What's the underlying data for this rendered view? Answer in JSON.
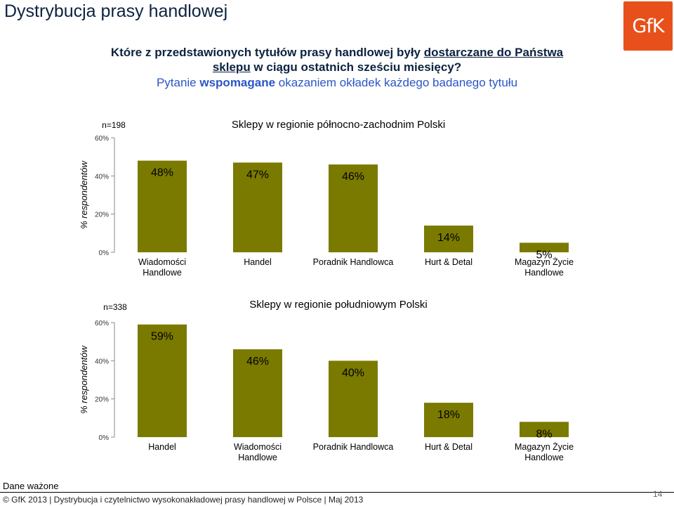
{
  "header": {
    "title": "Dystrybucja prasy handlowej",
    "logo_text": "GfK"
  },
  "question": {
    "part1": "Które z przedstawionych tytułów prasy handlowej były ",
    "part2_underlined": "dostarczane do Państwa",
    "part3_underlined": "sklepu",
    "part4": " w ciągu ostatnich sześciu miesięcy?",
    "sub_prefix": "Pytanie ",
    "sub_bold": "wspomagane",
    "sub_suffix": " okazaniem okładek każdego badanego tytułu"
  },
  "chart_data": [
    {
      "type": "bar",
      "title": "Sklepy w regionie północno-zachodnim Polski",
      "n_label": "n=198",
      "ylabel": "% respondentów",
      "ylim": [
        0,
        60
      ],
      "yticks": [
        "0%",
        "20%",
        "40%",
        "60%"
      ],
      "categories": [
        "Wiadomości Handlowe",
        "Handel",
        "Poradnik Handlowca",
        "Hurt & Detal",
        "Magazyn Życie Handlowe"
      ],
      "values": [
        48,
        47,
        46,
        14,
        5
      ],
      "value_labels": [
        "48%",
        "47%",
        "46%",
        "14%",
        "5%"
      ],
      "bar_color": "#7a7a00"
    },
    {
      "type": "bar",
      "title": "Sklepy w regionie południowym Polski",
      "n_label": "n=338",
      "ylabel": "% respondentów",
      "ylim": [
        0,
        60
      ],
      "yticks": [
        "0%",
        "20%",
        "40%",
        "60%"
      ],
      "categories": [
        "Handel",
        "Wiadomości Handlowe",
        "Poradnik Handlowca",
        "Hurt & Detal",
        "Magazyn Życie Handlowe"
      ],
      "values": [
        59,
        46,
        40,
        18,
        8
      ],
      "value_labels": [
        "59%",
        "46%",
        "40%",
        "18%",
        "8%"
      ],
      "bar_color": "#7a7a00"
    }
  ],
  "footer": {
    "note": "Dane ważone",
    "text": "© GfK 2013 | Dystrybucja i czytelnictwo wysokonakładowej prasy handlowej w Polsce | Maj 2013",
    "page_number": "14"
  }
}
